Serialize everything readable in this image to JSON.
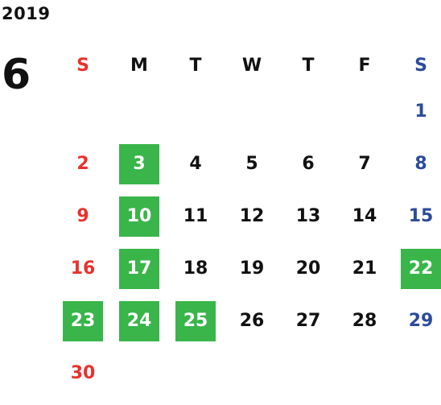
{
  "calendar": {
    "year": "2019",
    "month": "6",
    "weekdays": [
      "S",
      "M",
      "T",
      "W",
      "T",
      "F",
      "S"
    ],
    "highlight_color": "#39b54a",
    "sunday_color": "#e8322d",
    "saturday_color": "#2b4b9b",
    "days": [
      {
        "day": "1",
        "weekday": 6,
        "highlighted": false
      },
      {
        "day": "2",
        "weekday": 0,
        "highlighted": false
      },
      {
        "day": "3",
        "weekday": 1,
        "highlighted": true
      },
      {
        "day": "4",
        "weekday": 2,
        "highlighted": false
      },
      {
        "day": "5",
        "weekday": 3,
        "highlighted": false
      },
      {
        "day": "6",
        "weekday": 4,
        "highlighted": false
      },
      {
        "day": "7",
        "weekday": 5,
        "highlighted": false
      },
      {
        "day": "8",
        "weekday": 6,
        "highlighted": false
      },
      {
        "day": "9",
        "weekday": 0,
        "highlighted": false
      },
      {
        "day": "10",
        "weekday": 1,
        "highlighted": true
      },
      {
        "day": "11",
        "weekday": 2,
        "highlighted": false
      },
      {
        "day": "12",
        "weekday": 3,
        "highlighted": false
      },
      {
        "day": "13",
        "weekday": 4,
        "highlighted": false
      },
      {
        "day": "14",
        "weekday": 5,
        "highlighted": false
      },
      {
        "day": "15",
        "weekday": 6,
        "highlighted": false
      },
      {
        "day": "16",
        "weekday": 0,
        "highlighted": false
      },
      {
        "day": "17",
        "weekday": 1,
        "highlighted": true
      },
      {
        "day": "18",
        "weekday": 2,
        "highlighted": false
      },
      {
        "day": "19",
        "weekday": 3,
        "highlighted": false
      },
      {
        "day": "20",
        "weekday": 4,
        "highlighted": false
      },
      {
        "day": "21",
        "weekday": 5,
        "highlighted": false
      },
      {
        "day": "22",
        "weekday": 6,
        "highlighted": true
      },
      {
        "day": "23",
        "weekday": 0,
        "highlighted": true
      },
      {
        "day": "24",
        "weekday": 1,
        "highlighted": true
      },
      {
        "day": "25",
        "weekday": 2,
        "highlighted": true
      },
      {
        "day": "26",
        "weekday": 3,
        "highlighted": false
      },
      {
        "day": "27",
        "weekday": 4,
        "highlighted": false
      },
      {
        "day": "28",
        "weekday": 5,
        "highlighted": false
      },
      {
        "day": "29",
        "weekday": 6,
        "highlighted": false
      },
      {
        "day": "30",
        "weekday": 0,
        "highlighted": false
      }
    ]
  }
}
